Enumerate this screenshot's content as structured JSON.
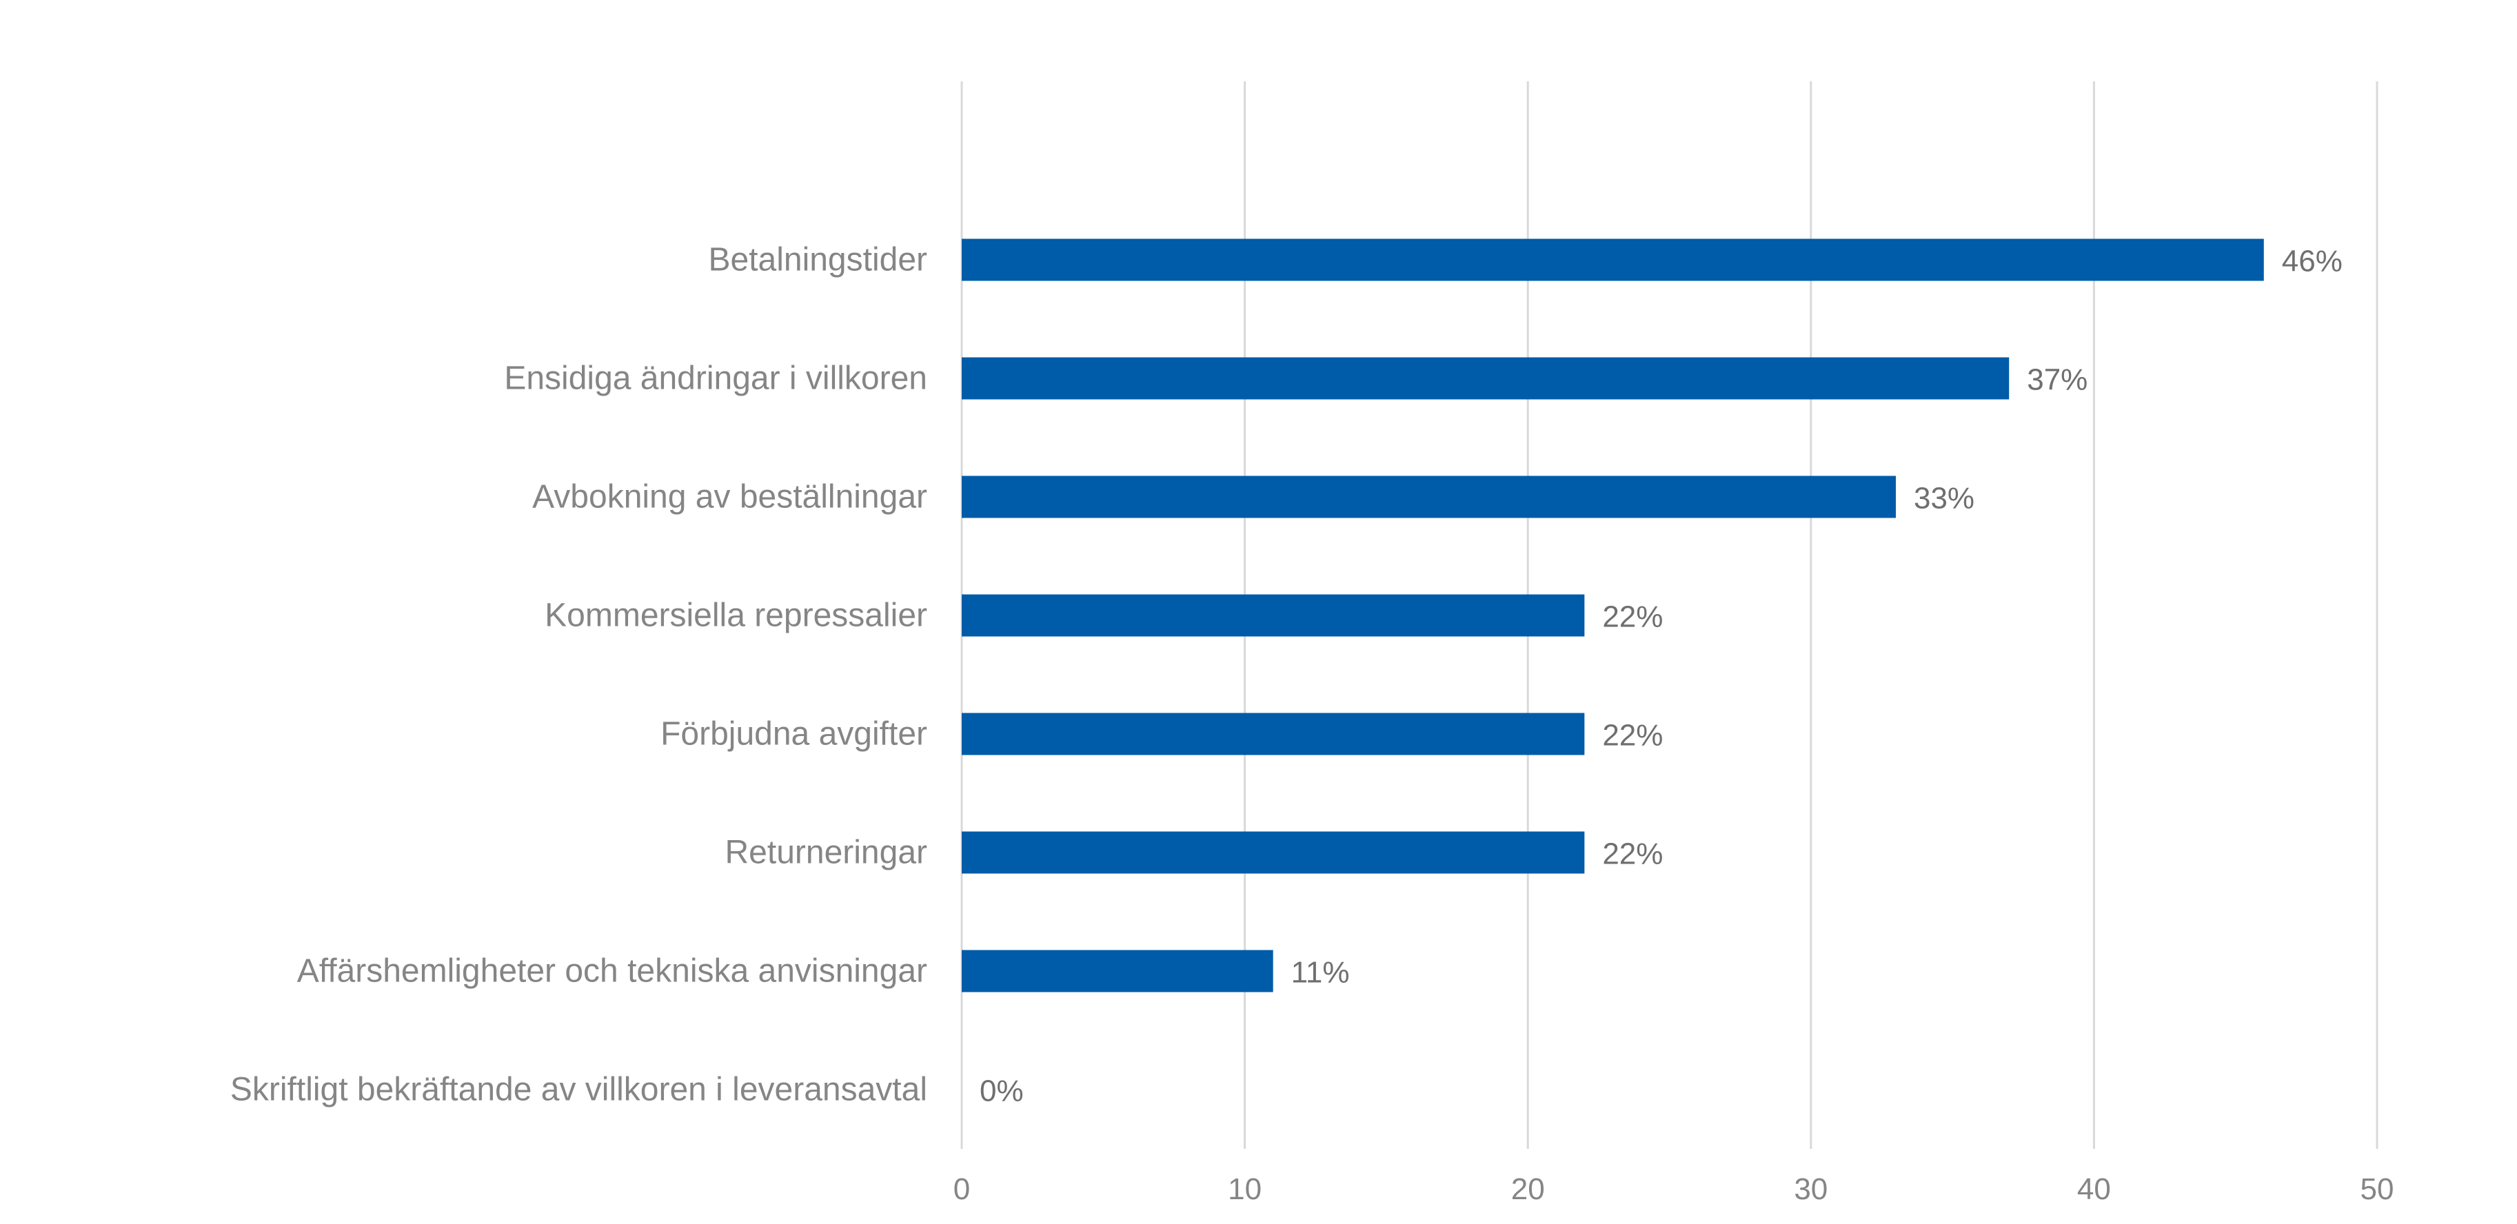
{
  "chart_data": {
    "type": "bar",
    "orientation": "horizontal",
    "categories": [
      "Betalningstider",
      "Ensidiga ändringar i villkoren",
      "Avbokning av beställningar",
      "Kommersiella repressalier",
      "Förbjudna avgifter",
      "Returneringar",
      "Affärshemligheter och tekniska anvisningar",
      "Skriftligt bekräftande av villkoren i leveransavtal"
    ],
    "values": [
      46,
      37,
      33,
      22,
      22,
      22,
      11,
      0
    ],
    "data_labels": [
      "46%",
      "37%",
      "33%",
      "22%",
      "22%",
      "22%",
      "11%",
      "0%"
    ],
    "xlim": [
      0,
      50
    ],
    "x_ticks": [
      0,
      10,
      20,
      30,
      40,
      50
    ],
    "x_tick_labels": [
      "0",
      "10",
      "20",
      "30",
      "40",
      "50"
    ],
    "grid": true,
    "legend": "none",
    "title": "",
    "xlabel": "",
    "ylabel": "",
    "colors": {
      "bar": "#005ba8",
      "gridline": "#d9d9d9",
      "category_text": "#858585",
      "data_label_text": "#6f6f6f"
    }
  }
}
